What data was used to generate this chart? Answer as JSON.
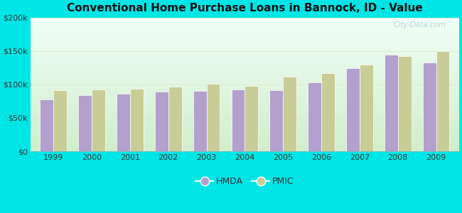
{
  "title": "Conventional Home Purchase Loans in Bannock, ID - Value",
  "years": [
    1999,
    2000,
    2001,
    2002,
    2003,
    2004,
    2005,
    2006,
    2007,
    2008,
    2009
  ],
  "hmda": [
    78000,
    84000,
    86000,
    89000,
    90000,
    92000,
    91000,
    103000,
    124000,
    144000,
    133000
  ],
  "pmic": [
    91000,
    92000,
    93000,
    97000,
    101000,
    98000,
    111000,
    117000,
    130000,
    142000,
    150000
  ],
  "hmda_color": "#b3a0cc",
  "pmic_color": "#c8cc96",
  "bar_edge_color": "#ffffff",
  "outer_bg": "#00e5e5",
  "gradient_top": "#f0fff8",
  "gradient_bottom": "#d0eecc",
  "ylim": [
    0,
    200000
  ],
  "yticks": [
    0,
    50000,
    100000,
    150000,
    200000
  ],
  "ytick_labels": [
    "$0",
    "$50k",
    "$100k",
    "$150k",
    "$200k"
  ],
  "watermark": "City-Data.com",
  "legend_hmda": "HMDA",
  "legend_pmic": "PMIC",
  "title_fontsize": 11,
  "tick_fontsize": 8,
  "bar_width": 0.35
}
